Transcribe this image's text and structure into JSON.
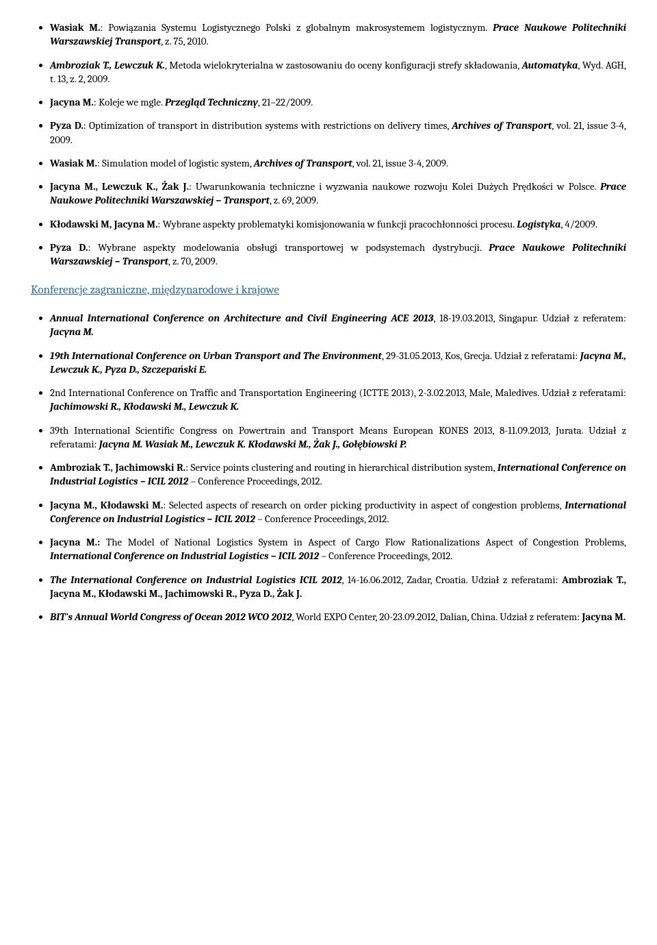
{
  "refs1": [
    {
      "html": "<span class='b'>Wasiak M.</span>: Powiązania Systemu Logistycznego Polski z globalnym makrosystemem logistycznym. <span class='bi'>Prace Naukowe Politechniki Warszawskiej Transport</span>, z. 75, 2010."
    },
    {
      "html": "<span class='bi'>Ambroziak T., Lewczuk K.</span>, Metoda wielokryterialna w zastosowaniu do oceny konfiguracji strefy składowania, <span class='bi'>Automatyka</span>, Wyd. AGH, t. 13, z. 2, 2009."
    },
    {
      "html": "<span class='b'>Jacyna M.</span>: Koleje we mgle. <span class='bi'>Przegląd Techniczny</span>, 21–22/2009."
    },
    {
      "html": "<span class='b'>Pyza D.</span>: Optimization of transport in distribution systems with restrictions on delivery times, <span class='bi'>Archives of Transport</span>, vol. 21, issue 3-4, 2009."
    },
    {
      "html": "<span class='b'>Wasiak M.</span>: Simulation model of logistic system, <span class='bi'>Archives of Transport</span>, vol. 21, issue 3-4, 2009."
    },
    {
      "html": "<span class='b'>Jacyna M., Lewczuk K., Żak J.</span>: Uwarunkowania techniczne i wyzwania naukowe rozwoju Kolei Dużych Prędkości w Polsce. <span class='bi'>Prace Naukowe Politechniki Warszawskiej – Transport</span>, z. 69, 2009."
    },
    {
      "html": "<span class='b'>Kłodawski M, Jacyna M.</span>: Wybrane aspekty problematyki komisjonowania w funkcji pracochłonności procesu. <span class='bi'>Logistyka</span>, 4/2009."
    },
    {
      "html": "<span class='b'>Pyza D.</span>: Wybrane aspekty modelowania obsługi transportowej w podsystemach dystrybucji. <span class='bi'>Prace Naukowe Politechniki Warszawskiej – Transport</span>, z. 70, 2009."
    }
  ],
  "section_title": "Konferencje zagraniczne, międzynarodowe i krajowe",
  "refs2": [
    {
      "html": "<span class='bi'>Annual International Conference on Architecture and Civil Engineering ACE 2013</span>, 18-19.03.2013, Singapur.  Udział z referatem: <span class='bi'>Jacyna M.</span>"
    },
    {
      "html": "<span class='bi'>19th International Conference on Urban Transport and The Environment</span>, 29-31.05.2013, Kos, Grecja. Udział z referatami: <span class='bi'>Jacyna M., Lewczuk K., Pyza D., Szczepański E.</span>"
    },
    {
      "html": "2nd International Conference on Traffic and Transportation Engineering (ICTTE 2013), 2-3.02.2013, Male, Maledives. Udział z referatami: <span class='bi'>Jachimowski R., Kłodawski M., Lewczuk K.</span>"
    },
    {
      "html": "39th International Scientific Congress on Powertrain and Transport Means European KONES 2013, 8-11.09.2013, Jurata. Udział z referatami: <span class='bi'>Jacyna M. Wasiak M., Lewczuk K. Kłodawski M., Żak J., Gołębiowski P.</span>"
    },
    {
      "html": "<span class='b'>Ambroziak T., Jachimowski R.</span>: Service points clustering and routing in hierarchical distribution system, <span class='bi'>International Conference on Industrial Logistics – ICIL 2012</span> – Conference Proceedings, 2012."
    },
    {
      "html": "<span class='b'>Jacyna M., Kłodawski M.</span>: Selected aspects of research on order picking productivity in aspect of congestion problems, <span class='bi'>International Conference on Industrial Logistics – ICIL 2012</span> – Conference Proceedings, 2012."
    },
    {
      "html": "<span class='b'>Jacyna M.:</span> The Model of National Logistics System in Aspect of Cargo Flow Rationalizations Aspect of Congestion Problems, <span class='bi'>International Conference on Industrial Logistics – ICIL 2012</span> – Conference Proceedings, 2012."
    },
    {
      "html": "<span class='bi'>The International Conference on Industrial Logistics ICIL 2012</span>, 14-16.06.2012, Zadar, Croatia. Udział z referatami: <span class='b'>Ambroziak T., Jacyna M., Kłodawski M., Jachimowski R., Pyza D., Żak J.</span>"
    },
    {
      "html": "<span class='bi'>BIT's Annual World Congress of Ocean 2012 WCO 2012</span>, World EXPO Center, 20-23.09.2012, Dalian, China. Udział z referatem: <span class='b'>Jacyna M.</span>"
    }
  ]
}
